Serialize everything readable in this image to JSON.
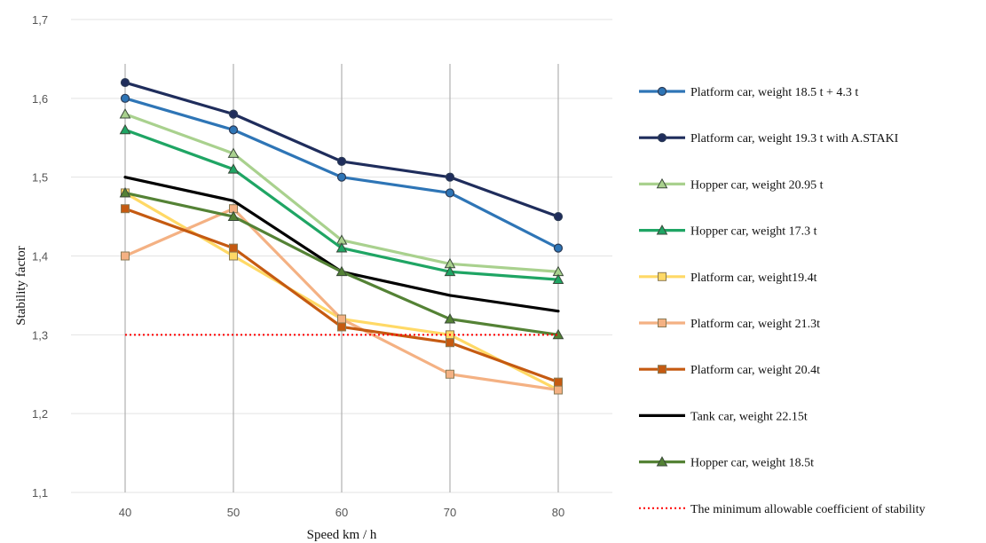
{
  "chart_data": {
    "type": "line",
    "title": "",
    "xlabel": "Speed km / h",
    "ylabel": "Stability factor",
    "x": [
      40,
      50,
      60,
      70,
      80
    ],
    "x_tick_labels": [
      "40",
      "50",
      "60",
      "70",
      "80"
    ],
    "ylim": [
      1.1,
      1.7
    ],
    "y_ticks": [
      1.1,
      1.2,
      1.3,
      1.4,
      1.5,
      1.6,
      1.7
    ],
    "y_tick_labels": [
      "1,1",
      "1,2",
      "1,3",
      "1,4",
      "1,5",
      "1,6",
      "1,7"
    ],
    "grid": "vertical",
    "legend_position": "right",
    "series": [
      {
        "name": "Platform car, weight 18.5 t + 4.3 t",
        "values": [
          1.6,
          1.56,
          1.5,
          1.48,
          1.41
        ],
        "color": "#2e75b6",
        "marker": "circle"
      },
      {
        "name": "Platform car, weight 19.3 t with A.STAKI",
        "values": [
          1.62,
          1.58,
          1.52,
          1.5,
          1.45
        ],
        "color": "#1f2d5c",
        "marker": "circle"
      },
      {
        "name": "Hopper car, weight 20.95 t",
        "values": [
          1.58,
          1.53,
          1.42,
          1.39,
          1.38
        ],
        "color": "#a9d18e",
        "marker": "triangle"
      },
      {
        "name": "Hopper car, weight 17.3  t",
        "values": [
          1.56,
          1.51,
          1.41,
          1.38,
          1.37
        ],
        "color": "#1fa564",
        "marker": "triangle"
      },
      {
        "name": "Platform car, weight19.4t",
        "values": [
          1.48,
          1.4,
          1.32,
          1.3,
          1.23
        ],
        "color": "#ffd966",
        "marker": "square"
      },
      {
        "name": "Platform car, weight 21.3t",
        "values": [
          1.4,
          1.46,
          1.32,
          1.25,
          1.23
        ],
        "color": "#f4b183",
        "marker": "square"
      },
      {
        "name": "Platform car, weight 20.4t",
        "values": [
          1.46,
          1.41,
          1.31,
          1.29,
          1.24
        ],
        "color": "#c55a11",
        "marker": "square"
      },
      {
        "name": "Tank car, weight 22.15t",
        "values": [
          1.5,
          1.47,
          1.38,
          1.35,
          1.33
        ],
        "color": "#000000",
        "marker": "none"
      },
      {
        "name": "Hopper car, weight 18.5t",
        "values": [
          1.48,
          1.45,
          1.38,
          1.32,
          1.3
        ],
        "color": "#548235",
        "marker": "triangle"
      },
      {
        "name": "The minimum allowable coefficient of stability",
        "values": [
          1.3,
          1.3,
          1.3,
          1.3,
          1.3
        ],
        "color": "#ff0000",
        "marker": "none",
        "dashed": true
      }
    ]
  }
}
